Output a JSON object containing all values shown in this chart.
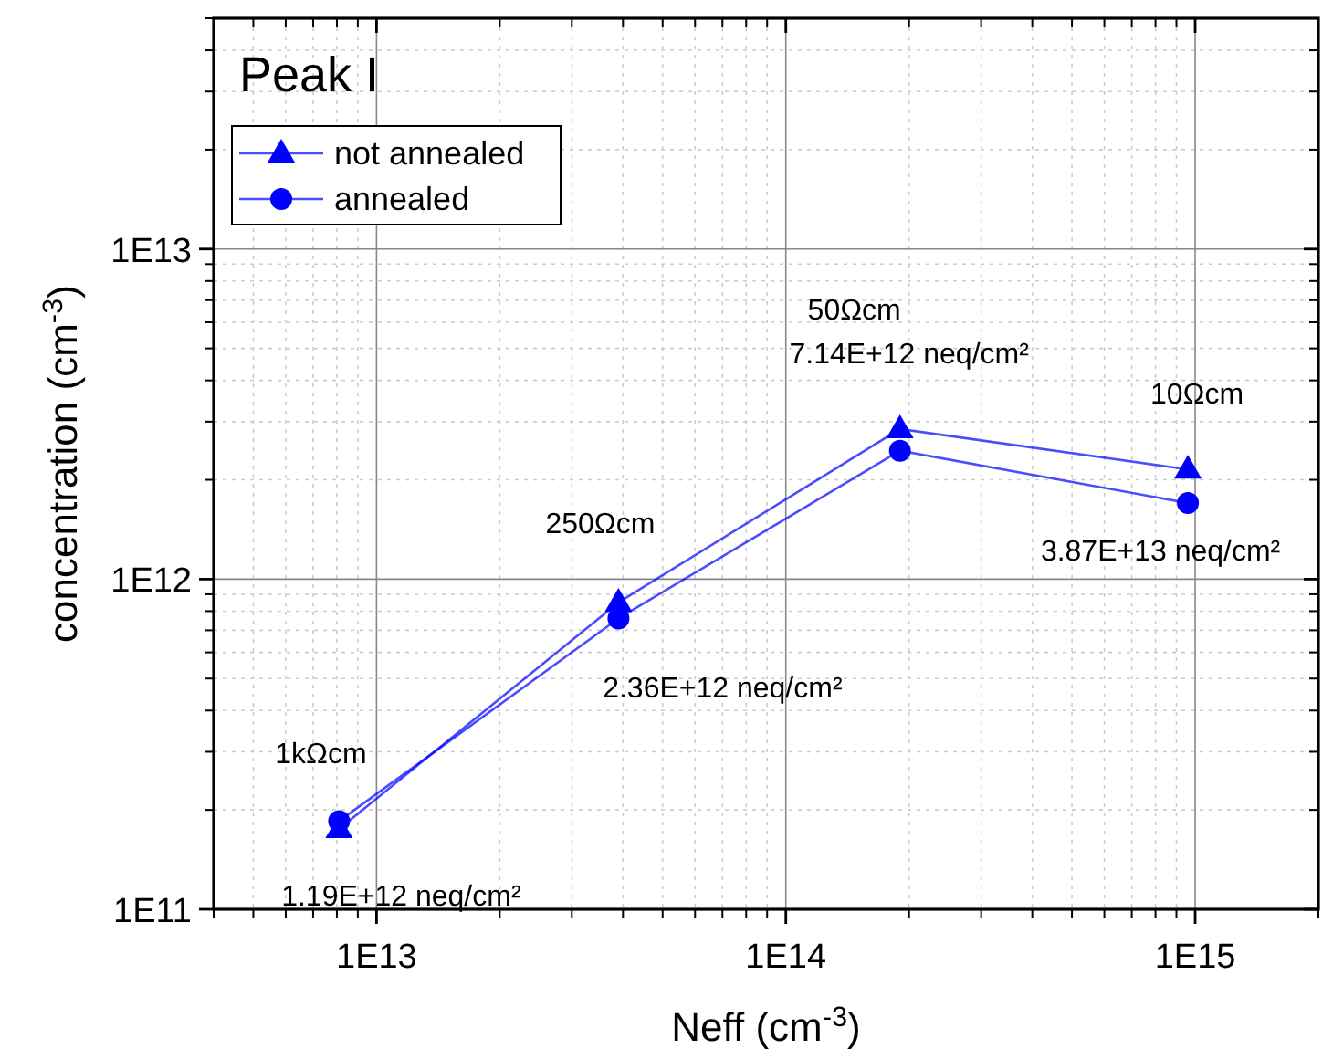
{
  "chart_data": {
    "type": "line",
    "title": "Peak I",
    "xlabel": "Neff (cm$^{-3}$)",
    "ylabel": "concentration (cm$^{-3}$)",
    "x": [
      8100000000000.0,
      39000000000000.0,
      190000000000000.0,
      960000000000000.0
    ],
    "series": [
      {
        "name": "not annealed",
        "color": "#0000ff",
        "marker": "triangle",
        "values": [
          175000000000.0,
          850000000000.0,
          2850000000000.0,
          2150000000000.0
        ]
      },
      {
        "name": "annealed",
        "color": "#0000ff",
        "marker": "circle",
        "values": [
          185000000000.0,
          760000000000.0,
          2450000000000.0,
          1700000000000.0
        ]
      }
    ],
    "log": "xy",
    "xlim": [
      4000000000000.0,
      2000000000000000.0
    ],
    "ylim": [
      100000000000.0,
      50000000000000.0
    ],
    "xticks": [
      {
        "value": 10000000000000.0,
        "label": "1E13"
      },
      {
        "value": 100000000000000.0,
        "label": "1E14"
      },
      {
        "value": 1000000000000000.0,
        "label": "1E15"
      }
    ],
    "yticks": [
      {
        "value": 100000000000.0,
        "label": "1E11"
      },
      {
        "value": 1000000000000.0,
        "label": "1E12"
      },
      {
        "value": 10000000000000.0,
        "label": "1E13"
      }
    ],
    "grid": true,
    "legend": "top left",
    "line_style": "solid",
    "annotations": [
      "1kΩcm",
      "1.19E+12 neq/cm²",
      "250Ωcm",
      "2.36E+12 neq/cm²",
      "50Ωcm",
      "7.14E+12 neq/cm²",
      "10Ωcm",
      "3.87E+13 neq/cm²"
    ]
  }
}
